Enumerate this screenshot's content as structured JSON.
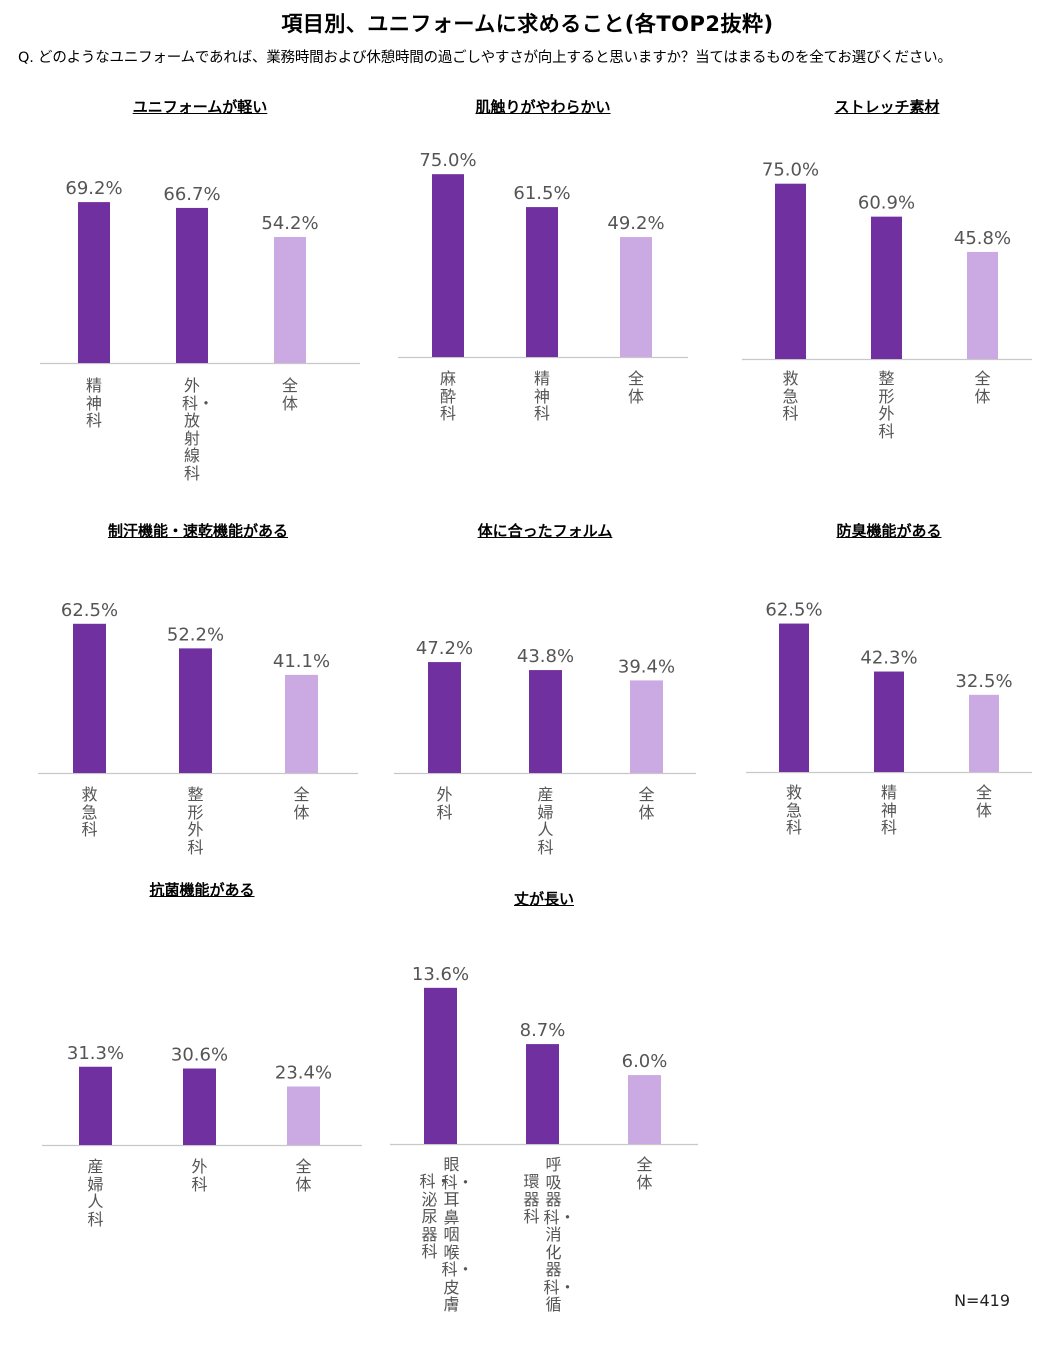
{
  "title": "項目別、ユニフォームに求めること(各TOP2抜粋)",
  "question": "Q. どのようなユニフォームであれば、業務時間および休憩時間の過ごしやすさが向上すると思いますか？当てはまるものを全てお選びください。",
  "note": "N=419",
  "colors": {
    "top": "#7030a0",
    "overall": "#cba9e3",
    "axis": "#c8c8c8",
    "value_text": "#555555"
  },
  "chart_data": [
    {
      "type": "bar",
      "title": "ユニフォームが軽い",
      "ylim": [
        0,
        80
      ],
      "categories": [
        [
          "精神科"
        ],
        [
          "外科・放射線科"
        ],
        [
          "全体"
        ]
      ],
      "value_labels": [
        "69.2%",
        "66.7%",
        "54.2%"
      ],
      "values": [
        69.2,
        66.7,
        54.2
      ],
      "highlight": [
        true,
        true,
        false
      ]
    },
    {
      "type": "bar",
      "title": "肌触りがやわらかい",
      "ylim": [
        0,
        80
      ],
      "categories": [
        [
          "麻酔科"
        ],
        [
          "精神科"
        ],
        [
          "全体"
        ]
      ],
      "value_labels": [
        "75.0%",
        "61.5%",
        "49.2%"
      ],
      "values": [
        75.0,
        61.5,
        49.2
      ],
      "highlight": [
        true,
        true,
        false
      ]
    },
    {
      "type": "bar",
      "title": "ストレッチ素材",
      "ylim": [
        0,
        80
      ],
      "categories": [
        [
          "救急科"
        ],
        [
          "整形外科"
        ],
        [
          "全体"
        ]
      ],
      "value_labels": [
        "75.0%",
        "60.9%",
        "45.8%"
      ],
      "values": [
        75.0,
        60.9,
        45.8
      ],
      "highlight": [
        true,
        true,
        false
      ]
    },
    {
      "type": "bar",
      "title": "制汗機能・速乾機能がある",
      "ylim": [
        0,
        80
      ],
      "categories": [
        [
          "救急科"
        ],
        [
          "整形外科"
        ],
        [
          "全体"
        ]
      ],
      "value_labels": [
        "62.5%",
        "52.2%",
        "41.1%"
      ],
      "values": [
        62.5,
        52.2,
        41.1
      ],
      "highlight": [
        true,
        true,
        false
      ]
    },
    {
      "type": "bar",
      "title": "体に合ったフォルム",
      "ylim": [
        0,
        80
      ],
      "categories": [
        [
          "外科"
        ],
        [
          "産婦人科"
        ],
        [
          "全体"
        ]
      ],
      "value_labels": [
        "47.2%",
        "43.8%",
        "39.4%"
      ],
      "values": [
        47.2,
        43.8,
        39.4
      ],
      "highlight": [
        true,
        true,
        false
      ]
    },
    {
      "type": "bar",
      "title": "防臭機能がある",
      "ylim": [
        0,
        80
      ],
      "categories": [
        [
          "救急科"
        ],
        [
          "精神科"
        ],
        [
          "全体"
        ]
      ],
      "value_labels": [
        "62.5%",
        "42.3%",
        "32.5%"
      ],
      "values": [
        62.5,
        42.3,
        32.5
      ],
      "highlight": [
        true,
        true,
        false
      ]
    },
    {
      "type": "bar",
      "title": "抗菌機能がある",
      "ylim": [
        0,
        80
      ],
      "categories": [
        [
          "産婦人科"
        ],
        [
          "外科"
        ],
        [
          "全体"
        ]
      ],
      "value_labels": [
        "31.3%",
        "30.6%",
        "23.4%"
      ],
      "values": [
        31.3,
        30.6,
        23.4
      ],
      "highlight": [
        true,
        true,
        false
      ]
    },
    {
      "type": "bar",
      "title": "丈が長い",
      "ylim": [
        0,
        15.5
      ],
      "categories": [
        [
          "眼科・耳鼻咽喉科・皮膚",
          "科・泌尿器科"
        ],
        [
          "呼吸器科・消化器科・循",
          "環器科"
        ],
        [
          "全体"
        ]
      ],
      "value_labels": [
        "13.6%",
        "8.7%",
        "6.0%"
      ],
      "values": [
        13.6,
        8.7,
        6.0
      ],
      "highlight": [
        true,
        true,
        false
      ]
    }
  ]
}
